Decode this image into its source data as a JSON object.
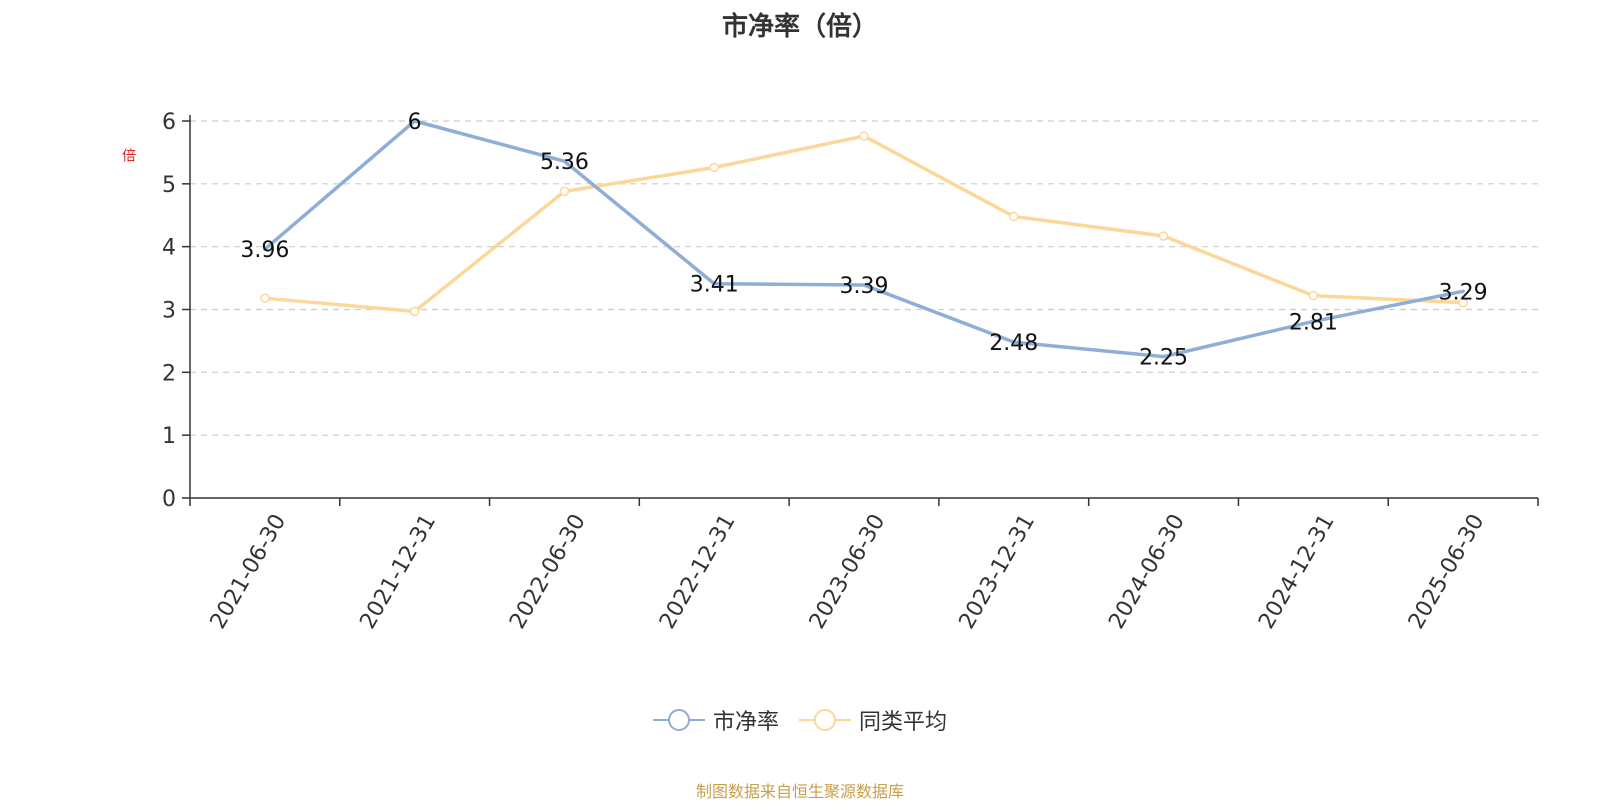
{
  "source_note": "制图数据来自恒生聚源数据库",
  "chart_data": {
    "type": "line",
    "title": "市净率（倍）",
    "ylabel": "倍",
    "xlabel": "",
    "categories": [
      "2021-06-30",
      "2021-12-31",
      "2022-06-30",
      "2022-12-31",
      "2023-06-30",
      "2023-12-31",
      "2024-06-30",
      "2024-12-31",
      "2025-06-30"
    ],
    "ylim": [
      0,
      6
    ],
    "yticks": [
      0,
      1,
      2,
      3,
      4,
      5,
      6
    ],
    "grid": true,
    "legend_position": "bottom",
    "series": [
      {
        "name": "市净率",
        "values": [
          3.96,
          6,
          5.36,
          3.41,
          3.39,
          2.48,
          2.25,
          2.81,
          3.29
        ],
        "color": "#8eaed8",
        "data_labels": true
      },
      {
        "name": "同类平均",
        "values": [
          3.18,
          2.97,
          4.88,
          5.26,
          5.76,
          4.48,
          4.17,
          3.22,
          3.11
        ],
        "color": "#fbd89a",
        "data_labels": false
      }
    ]
  }
}
